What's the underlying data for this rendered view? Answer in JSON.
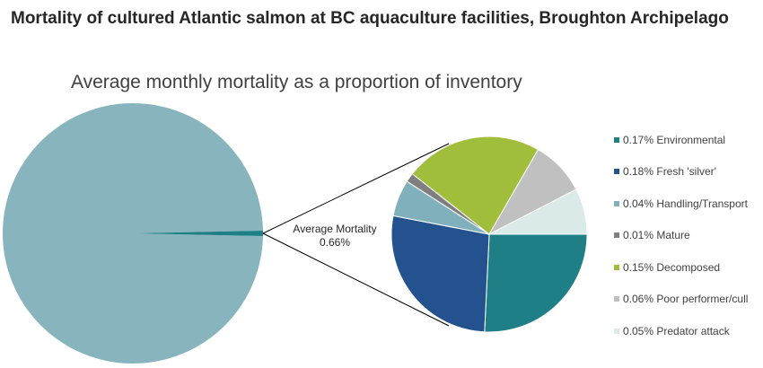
{
  "title": "Mortality of cultured Atlantic salmon at BC aquaculture facilities, Broughton Archipelago",
  "subtitle": "Average monthly mortality as a proportion of inventory",
  "chart_data": {
    "type": "pie",
    "main_pie": {
      "label_line1": "Average Mortality",
      "label_line2": "0.66%",
      "mortality_percent": 0.66,
      "remaining_percent": 99.34,
      "colors": {
        "remaining": "#87b4bd",
        "mortality": "#1e7f87"
      }
    },
    "breakdown": [
      {
        "label": "0.17% Environmental",
        "value": 0.17,
        "color": "#1e7f87"
      },
      {
        "label": "0.18% Fresh 'silver'",
        "value": 0.18,
        "color": "#24528f"
      },
      {
        "label": "0.04% Handling/Transport",
        "value": 0.04,
        "color": "#80b0bc"
      },
      {
        "label": "0.01% Mature",
        "value": 0.01,
        "color": "#7f7f7f"
      },
      {
        "label": "0.15% Decomposed",
        "value": 0.15,
        "color": "#a0be3c"
      },
      {
        "label": "0.06% Poor performer/cull",
        "value": 0.06,
        "color": "#c0c0c0"
      },
      {
        "label": "0.05% Predator attack",
        "value": 0.05,
        "color": "#d9eae8"
      }
    ],
    "legend_position": "right"
  }
}
